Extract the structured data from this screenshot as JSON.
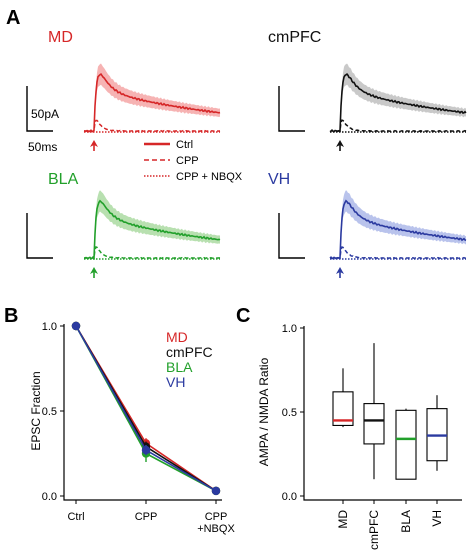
{
  "colors": {
    "MD": "#d62728",
    "cmPFC": "#111111",
    "BLA": "#22a02b",
    "VH": "#2b3aa0"
  },
  "panel_a": {
    "letter": "A",
    "conditions": [
      {
        "key": "MD",
        "label": "MD",
        "color": "#d62728",
        "fill": "#f6b3b3"
      },
      {
        "key": "cmPFC",
        "label": "cmPFC",
        "color": "#111111",
        "fill": "#c9c9c9"
      },
      {
        "key": "BLA",
        "label": "BLA",
        "color": "#22a02b",
        "fill": "#b8e0b0"
      },
      {
        "key": "VH",
        "label": "VH",
        "color": "#2b3aa0",
        "fill": "#b9c3ec"
      }
    ],
    "scale_bar": {
      "y_label": "50pA",
      "x_label": "50ms"
    },
    "legend": [
      {
        "label": "Ctrl",
        "style": "solid"
      },
      {
        "label": "CPP",
        "style": "dashed"
      },
      {
        "label": "CPP + NBQX",
        "style": "dotted"
      }
    ]
  },
  "chart_data": [
    {
      "panel": "B",
      "type": "line",
      "title": "",
      "xlabel": "",
      "ylabel": "EPSC Fraction",
      "categories": [
        "Ctrl",
        "CPP",
        "CPP\n+NBQX"
      ],
      "ylim": [
        0,
        1.0
      ],
      "yticks": [
        0.0,
        0.5,
        1.0
      ],
      "series": [
        {
          "name": "MD",
          "values": [
            1.0,
            0.31,
            0.03
          ],
          "errors": [
            0,
            0.03,
            0.01
          ]
        },
        {
          "name": "cmPFC",
          "values": [
            1.0,
            0.29,
            0.03
          ],
          "errors": [
            0,
            0.03,
            0.01
          ]
        },
        {
          "name": "BLA",
          "values": [
            1.0,
            0.25,
            0.03
          ],
          "errors": [
            0,
            0.05,
            0.01
          ]
        },
        {
          "name": "VH",
          "values": [
            1.0,
            0.27,
            0.03
          ],
          "errors": [
            0,
            0.03,
            0.01
          ]
        }
      ]
    },
    {
      "panel": "C",
      "type": "box",
      "title": "",
      "xlabel": "",
      "ylabel": "AMPA / NMDA Ratio",
      "categories": [
        "MD",
        "cmPFC",
        "BLA",
        "VH"
      ],
      "ylim": [
        0,
        1.0
      ],
      "yticks": [
        0.0,
        0.5,
        1.0
      ],
      "boxes": [
        {
          "name": "MD",
          "min": 0.41,
          "q1": 0.42,
          "median": 0.45,
          "q3": 0.62,
          "max": 0.76
        },
        {
          "name": "cmPFC",
          "min": 0.1,
          "q1": 0.31,
          "median": 0.45,
          "q3": 0.55,
          "max": 0.91
        },
        {
          "name": "BLA",
          "min": 0.1,
          "q1": 0.1,
          "median": 0.34,
          "q3": 0.51,
          "max": 0.52
        },
        {
          "name": "VH",
          "min": 0.15,
          "q1": 0.21,
          "median": 0.36,
          "q3": 0.52,
          "max": 0.6
        }
      ]
    }
  ],
  "panel_b": {
    "letter": "B"
  },
  "panel_c": {
    "letter": "C"
  }
}
